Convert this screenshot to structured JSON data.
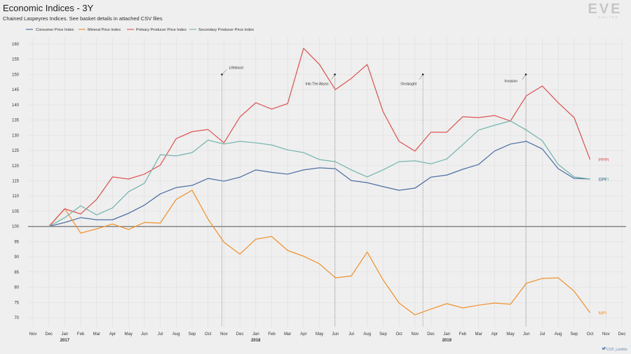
{
  "logo": {
    "main": "EVE",
    "sub": "ONLINE",
    "color": "#c6c6c6"
  },
  "credit": {
    "handle": "CCP_Larrikin",
    "icon": "twitter-bird-icon",
    "color": "#5f87b3"
  },
  "colors": {
    "background": "#efefef",
    "grid": "#dcdcdc",
    "baseline": "#7d7d7d",
    "annotation": "#8a8a8a"
  },
  "chart_data": {
    "type": "line",
    "title": "Economic Indices - 3Y",
    "subtitle": "Chained Laspeyres Indices. See basket details in attached CSV files",
    "xlabel": "",
    "ylabel": "",
    "ylim": [
      70,
      160
    ],
    "y_ticks": [
      70,
      75,
      80,
      85,
      90,
      95,
      100,
      105,
      110,
      115,
      120,
      125,
      130,
      135,
      140,
      145,
      150,
      155,
      160
    ],
    "xlim": [
      "2016-11",
      "2019-12"
    ],
    "x_ticks": [
      {
        "label": "Nov"
      },
      {
        "label": "Dec"
      },
      {
        "label": "Jan",
        "year": "2017"
      },
      {
        "label": "Feb"
      },
      {
        "label": "Mar"
      },
      {
        "label": "Apr"
      },
      {
        "label": "May"
      },
      {
        "label": "Jun"
      },
      {
        "label": "Jul"
      },
      {
        "label": "Aug"
      },
      {
        "label": "Sep"
      },
      {
        "label": "Oct"
      },
      {
        "label": "Nov"
      },
      {
        "label": "Dec"
      },
      {
        "label": "Jan",
        "year": "2018"
      },
      {
        "label": "Feb"
      },
      {
        "label": "Mar"
      },
      {
        "label": "Apr"
      },
      {
        "label": "May"
      },
      {
        "label": "Jun"
      },
      {
        "label": "Jul"
      },
      {
        "label": "Aug"
      },
      {
        "label": "Sep"
      },
      {
        "label": "Oct"
      },
      {
        "label": "Nov"
      },
      {
        "label": "Dec"
      },
      {
        "label": "Jan",
        "year": "2019"
      },
      {
        "label": "Feb"
      },
      {
        "label": "Mar"
      },
      {
        "label": "Apr"
      },
      {
        "label": "May"
      },
      {
        "label": "Jun"
      },
      {
        "label": "Jul"
      },
      {
        "label": "Aug"
      },
      {
        "label": "Sep"
      },
      {
        "label": "Oct"
      },
      {
        "label": "Nov"
      },
      {
        "label": "Dec"
      }
    ],
    "baseline": 100,
    "grid": true,
    "legend_position": "top-left",
    "x": [
      "2016-12",
      "2017-01",
      "2017-02",
      "2017-03",
      "2017-04",
      "2017-05",
      "2017-06",
      "2017-07",
      "2017-08",
      "2017-09",
      "2017-10",
      "2017-11",
      "2017-12",
      "2018-01",
      "2018-02",
      "2018-03",
      "2018-04",
      "2018-05",
      "2018-06",
      "2018-07",
      "2018-08",
      "2018-09",
      "2018-10",
      "2018-11",
      "2018-12",
      "2019-01",
      "2019-02",
      "2019-03",
      "2019-04",
      "2019-05",
      "2019-06",
      "2019-07",
      "2019-08",
      "2019-09",
      "2019-10"
    ],
    "series": [
      {
        "name": "Consumer Price Index",
        "short": "CPI",
        "color": "#4e6fa3",
        "values": [
          100,
          101.3,
          102.9,
          102.2,
          102.2,
          104.3,
          107.0,
          110.7,
          112.8,
          113.5,
          115.8,
          114.9,
          116.2,
          118.6,
          117.8,
          117.2,
          118.6,
          119.3,
          119.0,
          115.1,
          114.4,
          113.1,
          111.9,
          112.6,
          116.2,
          116.9,
          118.8,
          120.4,
          124.8,
          127.1,
          128.0,
          125.5,
          119.0,
          115.8,
          115.6
        ]
      },
      {
        "name": "Mineral Price Index",
        "short": "MPI",
        "color": "#f0922e",
        "values": [
          100,
          105.8,
          97.8,
          99.2,
          100.8,
          99.0,
          101.3,
          101.1,
          108.9,
          111.9,
          102.4,
          94.8,
          90.9,
          95.8,
          96.7,
          92.1,
          90.2,
          87.7,
          83.1,
          83.7,
          91.6,
          82.4,
          74.8,
          70.9,
          72.8,
          74.6,
          73.2,
          74.1,
          74.8,
          74.4,
          81.3,
          82.9,
          83.1,
          78.7,
          71.6
        ]
      },
      {
        "name": "Primary Producer Price Index",
        "short": "PPPI",
        "color": "#e05556",
        "values": [
          100,
          105.8,
          104.1,
          108.9,
          116.3,
          115.6,
          117.2,
          120.2,
          128.9,
          131.2,
          131.9,
          127.5,
          136.0,
          140.7,
          138.6,
          140.4,
          158.6,
          153.3,
          145.0,
          148.7,
          153.3,
          137.7,
          128.0,
          124.8,
          131.0,
          131.0,
          136.1,
          135.8,
          136.5,
          134.7,
          143.0,
          146.2,
          140.7,
          135.8,
          122.0
        ]
      },
      {
        "name": "Secondary Producer Price Index",
        "short": "SPPI",
        "color": "#74b5ae",
        "values": [
          100,
          102.9,
          106.8,
          103.8,
          106.1,
          111.4,
          114.2,
          123.6,
          123.2,
          124.3,
          128.4,
          127.1,
          128.0,
          127.5,
          126.8,
          125.2,
          124.3,
          122.0,
          121.3,
          118.6,
          116.3,
          118.6,
          121.3,
          121.6,
          120.6,
          122.2,
          126.9,
          131.7,
          133.3,
          134.7,
          131.7,
          128.2,
          120.4,
          116.3,
          115.6
        ]
      }
    ],
    "annotations": [
      {
        "label": "Lifeblood",
        "date": "2017-10-28",
        "y": 150
      },
      {
        "label": "Into The Abyss",
        "date": "2018-05-31",
        "y": 150
      },
      {
        "label": "Onslaught",
        "date": "2018-11-16",
        "y": 150
      },
      {
        "label": "Invasion",
        "date": "2019-05-31",
        "y": 150
      }
    ]
  }
}
